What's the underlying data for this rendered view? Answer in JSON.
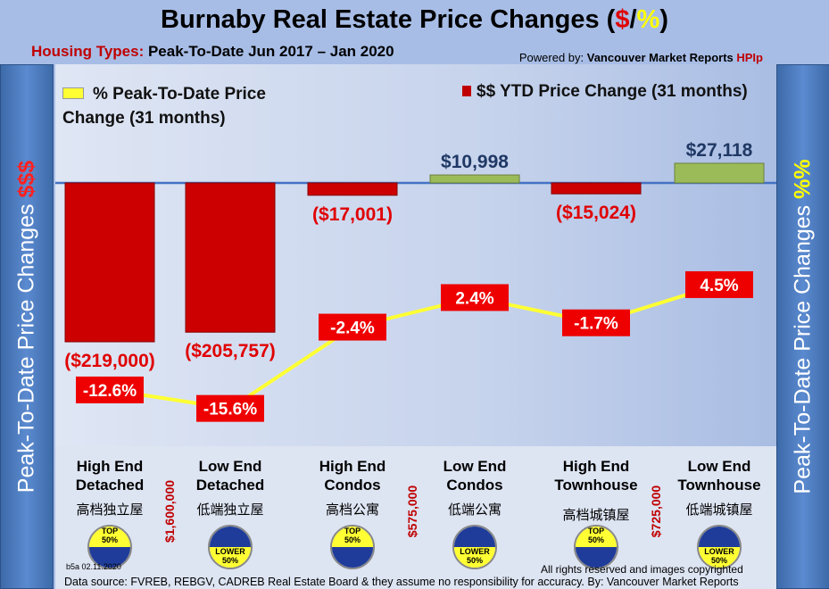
{
  "header": {
    "title_main": "Burnaby Real Estate Price Changes (",
    "title_dollar": "$",
    "title_slash": "/",
    "title_pct": "%",
    "title_end": ")",
    "sub_label": "Housing Types:",
    "sub_text": " Peak-To-Date Jun 2017 – Jan 2020",
    "powered_prefix": "Powered by: ",
    "powered_brand": "Vancouver Market Reports ",
    "powered_hpi": "HPIp"
  },
  "side": {
    "left_text": "Peak-To-Date Price Changes ",
    "left_sym": "$$$",
    "right_text": "Peak-To-Date  Price  Changes ",
    "right_sym": "%%"
  },
  "footer": {
    "code": "b5a 02.11.2020",
    "rights": "All rights reserved and  images copyrighted",
    "source": "Data source: FVREB, REBGV, CADREB Real Estate Board & they assume no responsibility for accuracy. By: Vancouver Market Reports"
  },
  "price_points": [
    "$1,600,000",
    "$575,000",
    "$725,000"
  ],
  "chinese": [
    "高档独立屋",
    "低端独立屋",
    "高档公寓",
    "低端公寓",
    "高档城镇屋",
    "低端城镇屋"
  ],
  "badges": [
    {
      "l1": "TOP",
      "l2": "50%",
      "top": true
    },
    {
      "l1": "LOWER",
      "l2": "50%",
      "top": false
    },
    {
      "l1": "TOP",
      "l2": "50%",
      "top": true
    },
    {
      "l1": "LOWER",
      "l2": "50%",
      "top": false
    },
    {
      "l1": "TOP",
      "l2": "50%",
      "top": true
    },
    {
      "l1": "LOWER",
      "l2": "50%",
      "top": false
    }
  ],
  "chart_data": {
    "type": "bar+line",
    "title": "Burnaby Real Estate Price Changes ($/%)",
    "categories": [
      [
        "High End",
        "Detached"
      ],
      [
        "Low End",
        "Detached"
      ],
      [
        "High End",
        "Condos"
      ],
      [
        "Low End",
        "Condos"
      ],
      [
        "High End",
        "Townhouse"
      ],
      [
        "Low End",
        "Townhouse"
      ]
    ],
    "series": [
      {
        "name": "$$ YTD Price Change (31 months)",
        "type": "bar",
        "values": [
          -219000,
          -205757,
          -17001,
          10998,
          -15024,
          27118
        ],
        "labels": [
          "($219,000)",
          "($205,757)",
          "($17,001)",
          "$10,998",
          "($15,024)",
          "$27,118"
        ]
      },
      {
        "name": "% Peak-To-Date Price Change (31 months)",
        "type": "line",
        "values": [
          -12.6,
          -15.6,
          -2.4,
          2.4,
          -1.7,
          4.5
        ],
        "labels": [
          "-12.6%",
          "-15.6%",
          "-2.4%",
          "2.4%",
          "-1.7%",
          "4.5%"
        ]
      }
    ],
    "legend": [
      "% Peak-To-Date Price Change (31 months)",
      "$$ YTD Price Change (31 months)"
    ],
    "colors": {
      "neg": "#cc0000",
      "pos": "#9bbb59",
      "line": "#ffff33"
    }
  }
}
